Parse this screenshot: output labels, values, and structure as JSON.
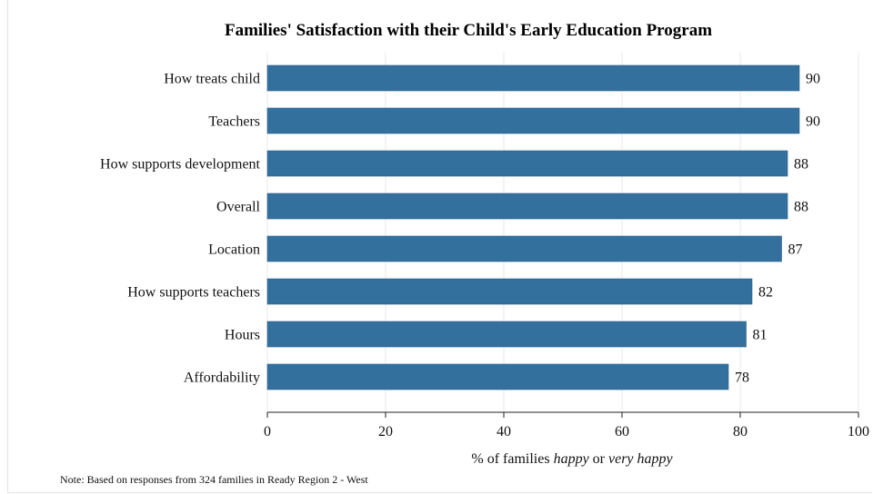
{
  "chart_data": {
    "type": "bar",
    "orientation": "horizontal",
    "title": "Families' Satisfaction with their Child's Early Education Program",
    "categories": [
      "How treats child",
      "Teachers",
      "How supports development",
      "Overall",
      "Location",
      "How supports teachers",
      "Hours",
      "Affordability"
    ],
    "values": [
      90,
      90,
      88,
      88,
      87,
      82,
      81,
      78
    ],
    "xlabel": {
      "prefix": "% of families ",
      "em1": "happy",
      "mid": " or ",
      "em2": "very happy"
    },
    "xlim": [
      0,
      100
    ],
    "xticks": [
      0,
      20,
      40,
      60,
      80,
      100
    ],
    "grid": true,
    "bar_color": "#33709e",
    "note": "Note: Based on responses from 324 families in Ready Region 2 - West"
  }
}
